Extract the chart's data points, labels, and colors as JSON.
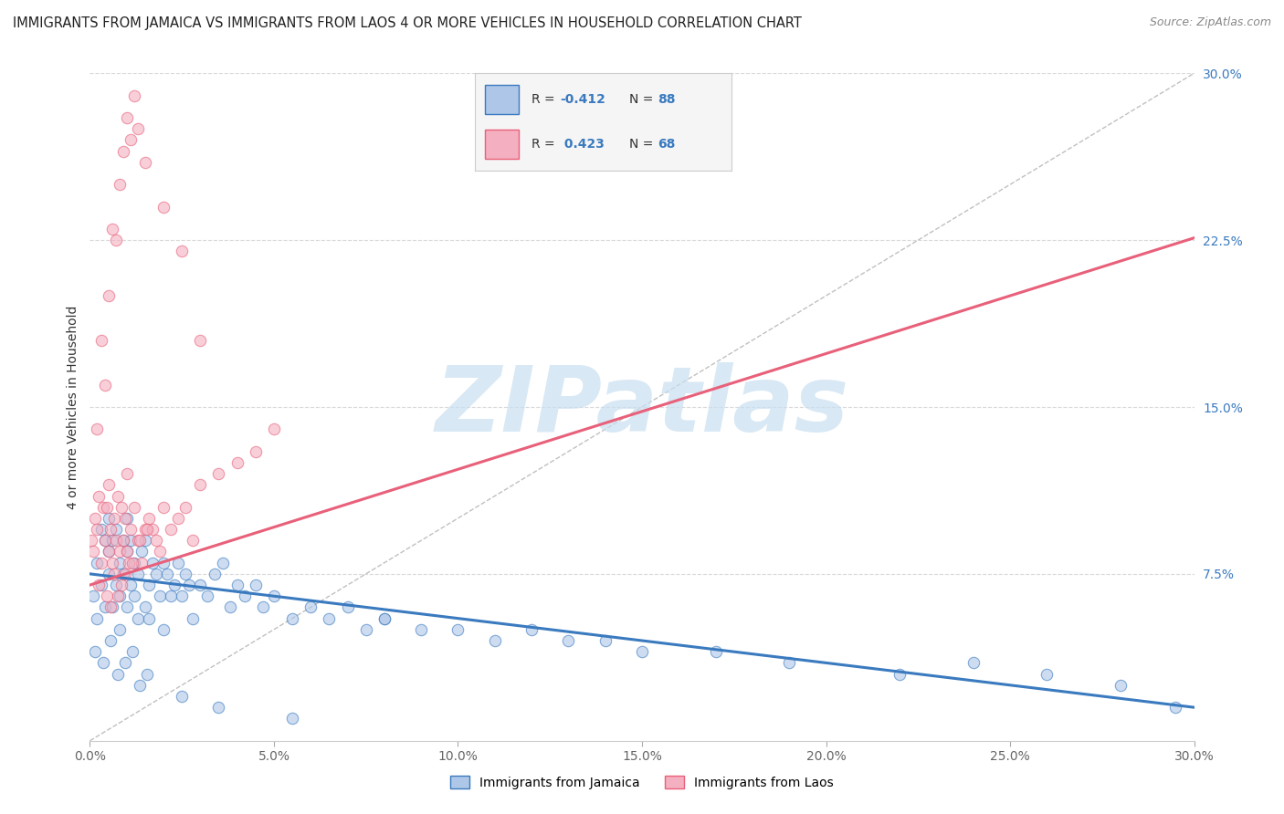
{
  "title": "IMMIGRANTS FROM JAMAICA VS IMMIGRANTS FROM LAOS 4 OR MORE VEHICLES IN HOUSEHOLD CORRELATION CHART",
  "source": "Source: ZipAtlas.com",
  "ylabel": "4 or more Vehicles in Household",
  "xlabel_ticks": [
    0.0,
    5.0,
    10.0,
    15.0,
    20.0,
    25.0,
    30.0
  ],
  "ylabel_ticks": [
    7.5,
    15.0,
    22.5,
    30.0
  ],
  "xmin": 0.0,
  "xmax": 30.0,
  "ymin": 0.0,
  "ymax": 30.0,
  "jamaica_R": -0.412,
  "jamaica_N": 88,
  "laos_R": 0.423,
  "laos_N": 68,
  "jamaica_color": "#aec6e8",
  "laos_color": "#f4afc0",
  "jamaica_line_color": "#3a7abf",
  "laos_line_color": "#e8607a",
  "watermark_zip_color": "#c5d8ee",
  "watermark_atlas_color": "#b0c8e0",
  "watermark_text": "ZIPatlas",
  "background_color": "#ffffff",
  "grid_color": "#d8d8d8",
  "title_fontsize": 10.5,
  "source_fontsize": 9,
  "axis_label_fontsize": 10,
  "tick_fontsize": 10,
  "jamaica_line_intercept": 7.5,
  "jamaica_line_slope": -0.2,
  "laos_line_intercept": 7.0,
  "laos_line_slope": 0.52,
  "jamaica_scatter_x": [
    0.1,
    0.2,
    0.2,
    0.3,
    0.3,
    0.4,
    0.4,
    0.5,
    0.5,
    0.5,
    0.6,
    0.6,
    0.7,
    0.7,
    0.8,
    0.8,
    0.8,
    0.9,
    0.9,
    1.0,
    1.0,
    1.0,
    1.1,
    1.1,
    1.2,
    1.2,
    1.3,
    1.3,
    1.4,
    1.5,
    1.5,
    1.6,
    1.6,
    1.7,
    1.8,
    1.9,
    2.0,
    2.0,
    2.1,
    2.2,
    2.3,
    2.4,
    2.5,
    2.6,
    2.7,
    2.8,
    3.0,
    3.2,
    3.4,
    3.6,
    3.8,
    4.0,
    4.2,
    4.5,
    4.7,
    5.0,
    5.5,
    6.0,
    6.5,
    7.0,
    7.5,
    8.0,
    9.0,
    10.0,
    11.0,
    12.0,
    13.0,
    14.0,
    15.0,
    17.0,
    19.0,
    22.0,
    24.0,
    26.0,
    28.0,
    29.5,
    0.15,
    0.35,
    0.55,
    0.75,
    0.95,
    1.15,
    1.35,
    1.55,
    2.5,
    3.5,
    5.5,
    8.0
  ],
  "jamaica_scatter_y": [
    6.5,
    5.5,
    8.0,
    7.0,
    9.5,
    6.0,
    9.0,
    7.5,
    10.0,
    8.5,
    6.0,
    9.0,
    7.0,
    9.5,
    6.5,
    8.0,
    5.0,
    7.5,
    9.0,
    6.0,
    8.5,
    10.0,
    7.0,
    9.0,
    6.5,
    8.0,
    7.5,
    5.5,
    8.5,
    6.0,
    9.0,
    7.0,
    5.5,
    8.0,
    7.5,
    6.5,
    8.0,
    5.0,
    7.5,
    6.5,
    7.0,
    8.0,
    6.5,
    7.5,
    7.0,
    5.5,
    7.0,
    6.5,
    7.5,
    8.0,
    6.0,
    7.0,
    6.5,
    7.0,
    6.0,
    6.5,
    5.5,
    6.0,
    5.5,
    6.0,
    5.0,
    5.5,
    5.0,
    5.0,
    4.5,
    5.0,
    4.5,
    4.5,
    4.0,
    4.0,
    3.5,
    3.0,
    3.5,
    3.0,
    2.5,
    1.5,
    4.0,
    3.5,
    4.5,
    3.0,
    3.5,
    4.0,
    2.5,
    3.0,
    2.0,
    1.5,
    1.0,
    5.5
  ],
  "laos_scatter_x": [
    0.05,
    0.1,
    0.15,
    0.2,
    0.25,
    0.3,
    0.35,
    0.4,
    0.45,
    0.5,
    0.5,
    0.55,
    0.6,
    0.65,
    0.7,
    0.75,
    0.8,
    0.85,
    0.9,
    0.95,
    1.0,
    1.0,
    1.1,
    1.2,
    1.3,
    1.4,
    1.5,
    1.6,
    1.7,
    1.8,
    1.9,
    2.0,
    2.2,
    2.4,
    2.6,
    2.8,
    3.0,
    3.5,
    4.0,
    4.5,
    5.0,
    0.2,
    0.3,
    0.4,
    0.5,
    0.6,
    0.7,
    0.8,
    0.9,
    1.0,
    1.1,
    1.2,
    1.3,
    1.5,
    2.0,
    2.5,
    3.0,
    0.25,
    0.45,
    0.65,
    0.85,
    1.05,
    0.55,
    0.75,
    0.95,
    1.15,
    1.35,
    1.55
  ],
  "laos_scatter_y": [
    9.0,
    8.5,
    10.0,
    9.5,
    11.0,
    8.0,
    10.5,
    9.0,
    10.5,
    8.5,
    11.5,
    9.5,
    8.0,
    10.0,
    9.0,
    11.0,
    8.5,
    10.5,
    9.0,
    10.0,
    8.5,
    12.0,
    9.5,
    10.5,
    9.0,
    8.0,
    9.5,
    10.0,
    9.5,
    9.0,
    8.5,
    10.5,
    9.5,
    10.0,
    10.5,
    9.0,
    11.5,
    12.0,
    12.5,
    13.0,
    14.0,
    14.0,
    18.0,
    16.0,
    20.0,
    23.0,
    22.5,
    25.0,
    26.5,
    28.0,
    27.0,
    29.0,
    27.5,
    26.0,
    24.0,
    22.0,
    18.0,
    7.0,
    6.5,
    7.5,
    7.0,
    8.0,
    6.0,
    6.5,
    7.5,
    8.0,
    9.0,
    9.5
  ]
}
